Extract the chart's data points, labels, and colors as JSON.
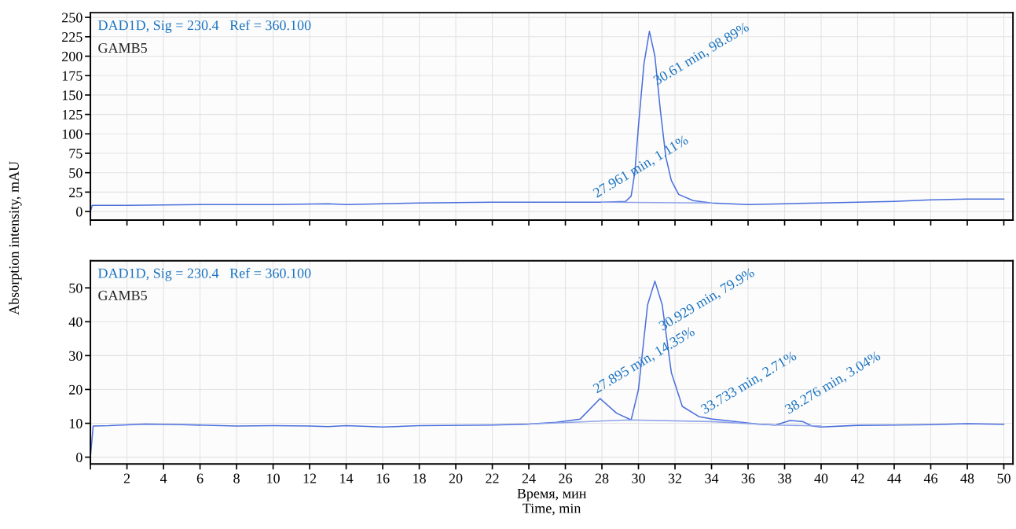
{
  "chart_data": [
    {
      "type": "line",
      "ylabel": "Absorption intensity, mAU",
      "annotations": [
        "DAD1D, Sig = 230.4   Ref = 360.100",
        "GAMB5",
        {
          "text": "30.61 min, 98.89%",
          "x": 31.1,
          "y": 159
        },
        {
          "text": "27.961 min, 1.11%",
          "x": 27.8,
          "y": 14
        }
      ],
      "series": [
        {
          "color": "#4a6fdc",
          "x": [
            0,
            0.1,
            2,
            6,
            10,
            13,
            14,
            18,
            22,
            26,
            28,
            29.3,
            29.6,
            29.8,
            30,
            30.3,
            30.6,
            30.9,
            31.2,
            31.5,
            31.8,
            32.2,
            33,
            34,
            36,
            38,
            40,
            42,
            44,
            46,
            48,
            50
          ],
          "values": [
            0,
            8,
            8,
            9,
            9,
            10,
            9,
            11,
            12,
            12,
            12,
            13,
            20,
            50,
            110,
            190,
            232,
            200,
            130,
            70,
            40,
            22,
            14,
            11,
            9,
            10,
            11,
            12,
            13,
            15,
            16,
            16
          ]
        },
        {
          "color": "#8fa4e8",
          "x": [
            28,
            34
          ],
          "values": [
            12,
            11
          ]
        }
      ],
      "xlim": [
        0,
        50.5
      ],
      "xticks": [
        {
          "value": 0,
          "label": null
        },
        2,
        4,
        6,
        8,
        10,
        12,
        14,
        16,
        18,
        20,
        22,
        24,
        26,
        28,
        30,
        32,
        34,
        36,
        38,
        40,
        42,
        44,
        46,
        48,
        50
      ],
      "ylim": [
        -11,
        256
      ],
      "yticks": [
        0,
        25,
        50,
        75,
        100,
        125,
        150,
        175,
        200,
        225,
        250
      ],
      "tick_labels": "y",
      "grid": true
    },
    {
      "type": "line",
      "xlabel": "Время, мин\nTime, min",
      "annotations": [
        "DAD1D, Sig = 230.4   Ref = 360.100",
        "GAMB5",
        {
          "text": "30.929 min, 79.9%",
          "x": 31.4,
          "y": 36.5
        },
        {
          "text": "27.895 min, 14.35%",
          "x": 27.8,
          "y": 18
        },
        {
          "text": "33.733 min, 2.71%",
          "x": 33.7,
          "y": 11.9
        },
        {
          "text": "38.276 min, 3.04%",
          "x": 38.3,
          "y": 11.9
        }
      ],
      "series": [
        {
          "color": "#4a6fdc",
          "x": [
            0,
            0.15,
            1,
            3,
            5,
            8,
            10,
            12,
            13,
            14,
            16,
            18,
            22,
            24,
            25.5,
            26.8,
            27.9,
            28.8,
            29.6,
            30,
            30.5,
            30.9,
            31.3,
            31.8,
            32.4,
            33.3,
            34,
            35,
            36.5,
            37.5,
            38.3,
            39,
            39.5,
            40,
            42,
            44,
            46,
            48,
            50
          ],
          "values": [
            0,
            9.2,
            9.3,
            9.8,
            9.6,
            9.2,
            9.3,
            9.2,
            9,
            9.3,
            8.9,
            9.3,
            9.5,
            9.8,
            10.3,
            11.2,
            17.3,
            13,
            11,
            20,
            45,
            52,
            45,
            25,
            15,
            12,
            11.3,
            10.7,
            9.8,
            9.5,
            10.8,
            10.5,
            9.2,
            8.9,
            9.4,
            9.5,
            9.6,
            9.9,
            9.7
          ]
        },
        {
          "color": "#8fa4e8",
          "x": [
            24,
            29.5,
            34,
            37.5,
            40
          ],
          "values": [
            9.8,
            11,
            10.5,
            9.5,
            9.2
          ]
        }
      ],
      "xlim": [
        0,
        50.5
      ],
      "xticks": [
        {
          "value": 0,
          "label": null
        },
        2,
        4,
        6,
        8,
        10,
        12,
        14,
        16,
        18,
        20,
        22,
        24,
        26,
        28,
        30,
        32,
        34,
        36,
        38,
        40,
        42,
        44,
        46,
        48,
        50
      ],
      "ylim": [
        -2,
        58
      ],
      "yticks": [
        0,
        10,
        20,
        30,
        40,
        50
      ],
      "grid": true
    }
  ]
}
